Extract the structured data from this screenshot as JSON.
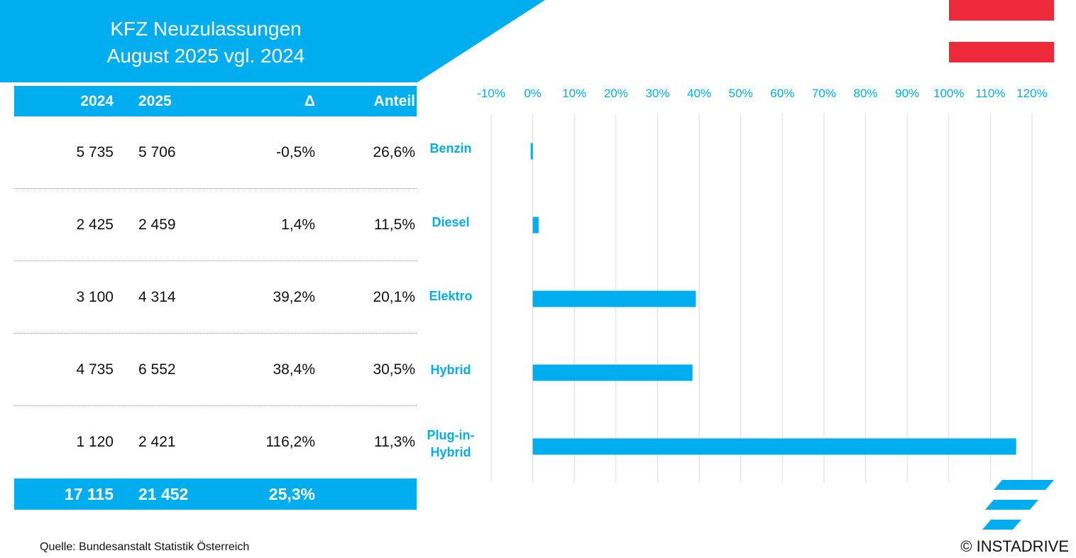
{
  "title": {
    "line1": "KFZ Neuzulassungen",
    "line2": "August 2025 vgl. 2024"
  },
  "table": {
    "headers": [
      "2024",
      "2025",
      "Δ",
      "Anteil"
    ],
    "rows": [
      {
        "y2024": "5 735",
        "y2025": "5 706",
        "delta": "-0,5%",
        "share": "26,6%"
      },
      {
        "y2024": "2 425",
        "y2025": "2 459",
        "delta": "1,4%",
        "share": "11,5%"
      },
      {
        "y2024": "3 100",
        "y2025": "4 314",
        "delta": "39,2%",
        "share": "20,1%"
      },
      {
        "y2024": "4 735",
        "y2025": "6 552",
        "delta": "38,4%",
        "share": "30,5%"
      },
      {
        "y2024": "1 120",
        "y2025": "2 421",
        "delta": "116,2%",
        "share": "11,3%"
      }
    ],
    "total": {
      "y2024": "17 115",
      "y2025": "21 452",
      "delta": "25,3%"
    }
  },
  "chart_data": {
    "type": "bar",
    "orientation": "horizontal",
    "categories": [
      "Benzin",
      "Diesel",
      "Elektro",
      "Hybrid",
      "Plug-in-Hybrid"
    ],
    "category_lines": [
      [
        "Benzin"
      ],
      [
        "Diesel"
      ],
      [
        "Elektro"
      ],
      [
        "Hybrid"
      ],
      [
        "Plug-in-",
        "Hybrid"
      ]
    ],
    "values": [
      -0.5,
      1.4,
      39.2,
      38.4,
      116.2
    ],
    "xlim": [
      -10,
      120
    ],
    "x_ticks": [
      "-10%",
      "0%",
      "10%",
      "20%",
      "30%",
      "40%",
      "50%",
      "60%",
      "70%",
      "80%",
      "90%",
      "100%",
      "110%",
      "120%"
    ],
    "axis_position": "top",
    "grid": true,
    "bar_color": "#00aeef"
  },
  "colors": {
    "accent": "#00aeef",
    "flag_red": "#ee2a3a"
  },
  "footer": {
    "source": "Quelle: Bundesanstalt Statistik Österreich",
    "copyright": "© INSTADRIVE"
  }
}
